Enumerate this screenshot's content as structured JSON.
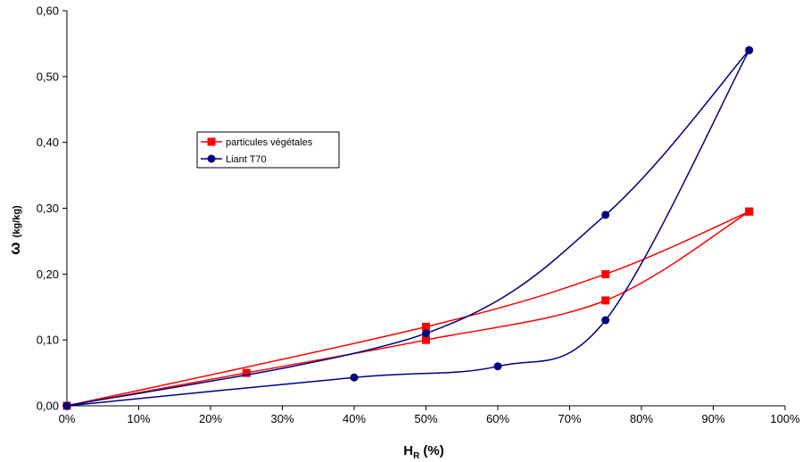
{
  "chart_data": {
    "type": "line",
    "xlabel": {
      "main": "H",
      "sub": "R",
      "unit": "(%)"
    },
    "ylabel": {
      "main": "ω",
      "unit": "(kg/kg)"
    },
    "xlim": [
      0,
      100
    ],
    "ylim": [
      0,
      0.6
    ],
    "x_ticks": [
      "0%",
      "10%",
      "20%",
      "30%",
      "40%",
      "50%",
      "60%",
      "70%",
      "80%",
      "90%",
      "100%"
    ],
    "y_ticks": [
      "0,00",
      "0,10",
      "0,20",
      "0,30",
      "0,40",
      "0,50",
      "0,60"
    ],
    "grid": false,
    "legend_position": "upper-left",
    "series": [
      {
        "name": "particules végétales",
        "color": "#ff0000",
        "marker": "square",
        "branches": [
          {
            "x": [
              0,
              25,
              50,
              75,
              95
            ],
            "y": [
              0,
              0.05,
              0.1,
              0.16,
              0.295
            ]
          },
          {
            "x": [
              95,
              75,
              50,
              0
            ],
            "y": [
              0.295,
              0.2,
              0.12,
              0
            ]
          }
        ]
      },
      {
        "name": "Liant T70",
        "color": "#000080",
        "marker": "circle",
        "branches": [
          {
            "x": [
              0,
              40,
              60,
              75,
              95
            ],
            "y": [
              0,
              0.043,
              0.06,
              0.13,
              0.54
            ]
          },
          {
            "x": [
              95,
              75,
              50,
              0
            ],
            "y": [
              0.54,
              0.29,
              0.11,
              0
            ]
          }
        ]
      }
    ]
  }
}
